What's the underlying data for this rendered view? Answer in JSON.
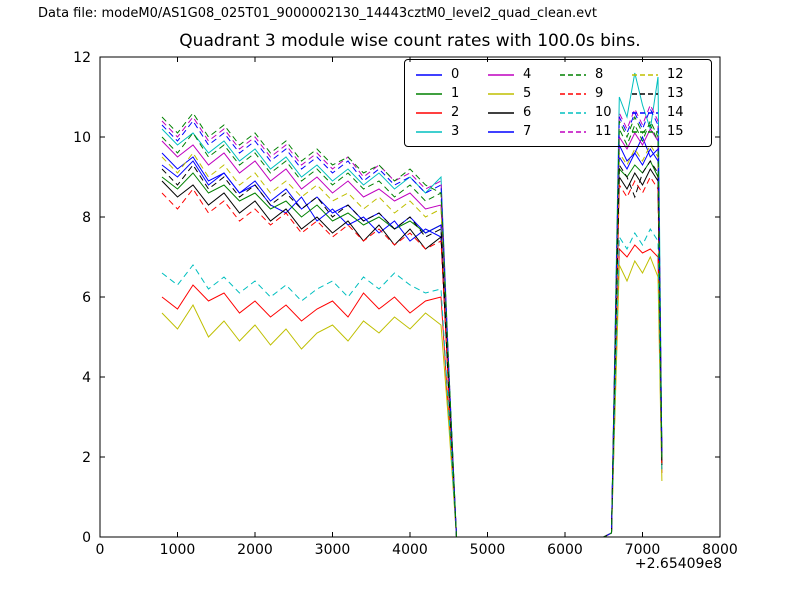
{
  "header": {
    "data_file_label": "Data file: modeM0/AS1G08_025T01_9000002130_14443cztM0_level2_quad_clean.evt"
  },
  "chart_data": {
    "type": "line",
    "title": "Quadrant 3 module wise count rates with 100.0s bins.",
    "xlabel": "",
    "ylabel": "",
    "x_offset_label": "+2.65409e8",
    "xlim": [
      0,
      8000
    ],
    "ylim": [
      0,
      12
    ],
    "xticks": [
      0,
      1000,
      2000,
      3000,
      4000,
      5000,
      6000,
      7000,
      8000
    ],
    "yticks": [
      0,
      2,
      4,
      6,
      8,
      10,
      12
    ],
    "grid": false,
    "legend_position": "upper right inside, 4 columns, column-major",
    "x": [
      800,
      1000,
      1200,
      1400,
      1600,
      1800,
      2000,
      2200,
      2400,
      2600,
      2800,
      3000,
      3200,
      3400,
      3600,
      3800,
      4000,
      4200,
      4400,
      4500,
      4600,
      5000,
      5500,
      6000,
      6500,
      6600,
      6700,
      6800,
      6900,
      7000,
      7100,
      7200,
      7250
    ],
    "series": [
      {
        "name": "0",
        "color": "#0000ff",
        "dash": false,
        "values": [
          9.6,
          9.2,
          9.5,
          8.9,
          9.1,
          8.6,
          8.8,
          8.3,
          8.1,
          8.5,
          7.9,
          8.2,
          7.8,
          8.0,
          7.6,
          7.9,
          7.4,
          7.7,
          7.5,
          3.8,
          0,
          0,
          0,
          0,
          0,
          0.1,
          9.8,
          9.4,
          9.6,
          10.0,
          9.5,
          9.7,
          1.9
        ]
      },
      {
        "name": "1",
        "color": "#008000",
        "dash": false,
        "values": [
          9.0,
          8.7,
          9.1,
          8.6,
          8.8,
          8.4,
          8.6,
          8.2,
          8.4,
          8.0,
          8.3,
          7.9,
          8.1,
          7.8,
          8.0,
          7.7,
          7.9,
          7.6,
          7.8,
          3.6,
          0,
          0,
          0,
          0,
          0,
          0.1,
          9.2,
          9.0,
          9.3,
          9.1,
          9.4,
          9.0,
          1.8
        ]
      },
      {
        "name": "2",
        "color": "#ff0000",
        "dash": false,
        "values": [
          6.0,
          5.7,
          6.3,
          5.9,
          6.1,
          5.6,
          5.9,
          5.5,
          5.8,
          5.4,
          5.7,
          5.9,
          5.5,
          6.1,
          5.7,
          6.0,
          5.6,
          5.9,
          6.0,
          3.0,
          0,
          0,
          0,
          0,
          0,
          0.1,
          7.2,
          7.0,
          7.3,
          7.1,
          7.2,
          7.0,
          1.6
        ]
      },
      {
        "name": "3",
        "color": "#00bfbf",
        "dash": false,
        "values": [
          10.2,
          9.8,
          10.1,
          9.6,
          9.9,
          9.4,
          9.7,
          9.2,
          9.5,
          9.0,
          9.3,
          8.9,
          9.2,
          8.8,
          9.1,
          8.7,
          9.0,
          8.6,
          9.0,
          4.2,
          0,
          0,
          0,
          0,
          0,
          0.1,
          11.0,
          10.5,
          11.6,
          10.8,
          10.2,
          11.5,
          2.0
        ]
      },
      {
        "name": "4",
        "color": "#bf00bf",
        "dash": false,
        "values": [
          9.9,
          9.5,
          9.8,
          9.3,
          9.6,
          9.1,
          9.4,
          8.9,
          9.2,
          8.7,
          9.0,
          8.6,
          8.9,
          8.5,
          8.7,
          8.4,
          8.6,
          8.2,
          8.3,
          4.0,
          0,
          0,
          0,
          0,
          0,
          0.1,
          10.0,
          9.7,
          10.1,
          9.8,
          10.2,
          9.9,
          1.9
        ]
      },
      {
        "name": "5",
        "color": "#bfbf00",
        "dash": false,
        "values": [
          5.6,
          5.2,
          5.8,
          5.0,
          5.4,
          4.9,
          5.3,
          4.8,
          5.2,
          4.7,
          5.1,
          5.3,
          4.9,
          5.4,
          5.1,
          5.5,
          5.2,
          5.6,
          5.3,
          2.8,
          0,
          0,
          0,
          0,
          0,
          0.1,
          6.8,
          6.4,
          6.9,
          6.6,
          7.0,
          6.5,
          1.4
        ]
      },
      {
        "name": "6",
        "color": "#000000",
        "dash": false,
        "values": [
          8.9,
          8.5,
          8.8,
          8.3,
          8.6,
          8.1,
          8.4,
          7.9,
          8.2,
          7.7,
          8.0,
          7.6,
          7.9,
          7.4,
          7.8,
          7.3,
          7.7,
          7.2,
          7.5,
          3.7,
          0,
          0,
          0,
          0,
          0,
          0.1,
          9.0,
          8.7,
          9.1,
          8.8,
          9.2,
          8.9,
          1.8
        ]
      },
      {
        "name": "7",
        "color": "#0000ff",
        "dash": false,
        "values": [
          9.3,
          9.0,
          9.4,
          8.8,
          9.1,
          8.6,
          8.9,
          8.4,
          8.7,
          8.2,
          8.5,
          8.1,
          8.3,
          7.9,
          8.1,
          7.7,
          8.0,
          7.6,
          7.8,
          3.9,
          0,
          0,
          0,
          0,
          0,
          0.1,
          9.5,
          9.2,
          9.6,
          9.3,
          9.7,
          9.4,
          1.9
        ]
      },
      {
        "name": "8",
        "color": "#008000",
        "dash": true,
        "values": [
          10.0,
          9.6,
          10.1,
          9.5,
          9.8,
          9.3,
          9.6,
          9.1,
          9.4,
          8.9,
          9.2,
          8.8,
          9.1,
          8.7,
          8.9,
          8.5,
          8.8,
          8.4,
          8.6,
          4.1,
          0,
          0,
          0,
          0,
          0,
          0.1,
          10.2,
          9.8,
          10.3,
          9.9,
          10.4,
          10.0,
          2.0
        ]
      },
      {
        "name": "9",
        "color": "#ff0000",
        "dash": true,
        "values": [
          8.6,
          8.2,
          8.7,
          8.1,
          8.4,
          7.9,
          8.2,
          7.8,
          8.1,
          7.6,
          7.9,
          7.5,
          7.8,
          7.4,
          7.7,
          7.3,
          7.6,
          7.2,
          7.4,
          3.6,
          0,
          0,
          0,
          0,
          0,
          0.1,
          8.8,
          8.5,
          8.9,
          8.6,
          9.0,
          8.7,
          1.7
        ]
      },
      {
        "name": "10",
        "color": "#00bfbf",
        "dash": true,
        "values": [
          6.6,
          6.3,
          6.8,
          6.2,
          6.5,
          6.1,
          6.4,
          6.0,
          6.3,
          5.9,
          6.2,
          6.4,
          6.0,
          6.5,
          6.2,
          6.6,
          6.3,
          6.1,
          6.2,
          3.1,
          0,
          0,
          0,
          0,
          0,
          0.1,
          7.5,
          7.2,
          7.6,
          7.3,
          7.7,
          7.4,
          1.6
        ]
      },
      {
        "name": "11",
        "color": "#bf00bf",
        "dash": true,
        "values": [
          10.4,
          10.0,
          10.5,
          9.9,
          10.2,
          9.7,
          10.0,
          9.5,
          9.8,
          9.3,
          9.6,
          9.2,
          9.5,
          9.0,
          9.3,
          8.9,
          9.1,
          8.7,
          8.9,
          4.2,
          0,
          0,
          0,
          0,
          0,
          0.1,
          10.6,
          10.2,
          10.7,
          10.3,
          10.8,
          10.4,
          2.1
        ]
      },
      {
        "name": "12",
        "color": "#bfbf00",
        "dash": true,
        "values": [
          9.5,
          9.1,
          9.6,
          9.0,
          9.3,
          8.8,
          9.1,
          8.6,
          8.9,
          8.5,
          8.8,
          8.4,
          8.6,
          8.2,
          8.5,
          8.1,
          8.4,
          8.0,
          8.2,
          4.0,
          0,
          0,
          0,
          0,
          0,
          0.1,
          9.6,
          9.3,
          9.7,
          9.4,
          9.8,
          9.5,
          1.9
        ]
      },
      {
        "name": "13",
        "color": "#000000",
        "dash": true,
        "values": [
          9.2,
          8.8,
          9.3,
          8.7,
          9.0,
          8.5,
          8.8,
          8.3,
          8.6,
          8.2,
          8.5,
          8.0,
          8.3,
          7.9,
          8.1,
          7.7,
          8.0,
          7.5,
          7.7,
          3.8,
          0,
          0,
          0,
          0,
          0,
          0.1,
          9.3,
          9.0,
          8.5,
          9.1,
          9.4,
          9.1,
          1.8
        ]
      },
      {
        "name": "14",
        "color": "#0000ff",
        "dash": true,
        "values": [
          10.3,
          9.9,
          10.4,
          9.8,
          10.1,
          9.6,
          9.9,
          9.4,
          9.7,
          9.2,
          9.5,
          9.1,
          9.4,
          8.9,
          9.2,
          8.8,
          9.0,
          8.6,
          8.8,
          4.1,
          0,
          0,
          0,
          0,
          0,
          0.1,
          10.5,
          10.1,
          10.6,
          10.2,
          10.7,
          10.3,
          2.0
        ]
      },
      {
        "name": "15",
        "color": "#008000",
        "dash": true,
        "values": [
          10.5,
          10.1,
          10.6,
          10.0,
          10.3,
          9.8,
          10.1,
          9.6,
          9.9,
          9.4,
          9.7,
          9.3,
          9.5,
          9.1,
          9.3,
          8.9,
          9.2,
          8.8,
          8.6,
          4.2,
          0,
          0,
          0,
          0,
          0,
          0.1,
          10.4,
          10.0,
          10.5,
          10.1,
          10.3,
          9.9,
          1.9
        ]
      }
    ]
  }
}
